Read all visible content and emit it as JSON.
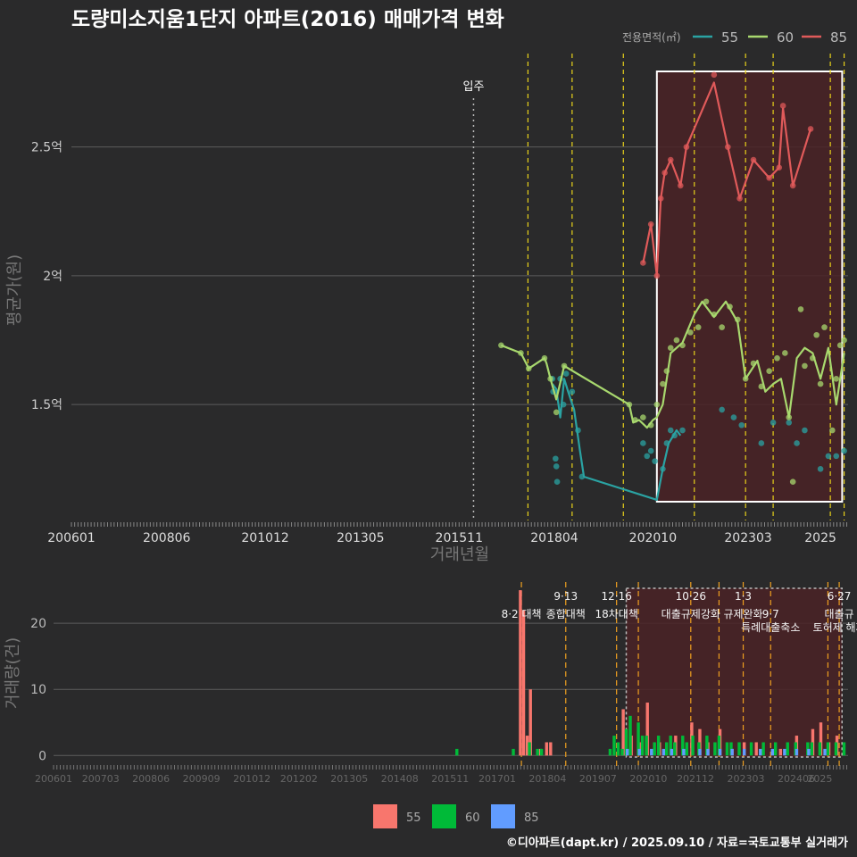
{
  "title": "도량미소지움1단지 아파트(2016) 매매가격 변화",
  "footer": "©디아파트(dapt.kr) / 2025.09.10 / 자료=국토교통부 실거래가",
  "colors": {
    "background": "#2a2a2b",
    "s55": "#2aa3a3",
    "s60": "#a8d86e",
    "s85": "#e05a5a",
    "bar55": "#f8766d",
    "bar60": "#00ba38",
    "bar85": "#619cff",
    "highlight": "#4a2226",
    "vline": "#e8d21a",
    "vline_bottom": "#f0a020"
  },
  "legend": {
    "title": "전용면적(㎡)",
    "items": [
      "55",
      "60",
      "85"
    ]
  },
  "bottom_legend": [
    "55",
    "60",
    "85"
  ],
  "price_chart": {
    "type": "line",
    "ylabel": "평균가(원)",
    "xlabel": "거래년월",
    "x_ticks": [
      "200601",
      "200806",
      "201012",
      "201305",
      "201511",
      "201804",
      "202010",
      "202303",
      "2025"
    ],
    "y_ticks": [
      {
        "value": 1.5,
        "label": "1.5억"
      },
      {
        "value": 2.0,
        "label": "2억"
      },
      {
        "value": 2.5,
        "label": "2.5억"
      }
    ],
    "ylim": [
      1.05,
      2.88
    ],
    "xlim": [
      2006.0,
      2025.7
    ],
    "move_in": {
      "x": 2016.2,
      "label": "입주"
    },
    "policy_lines": [
      2017.58,
      2018.7,
      2020.0,
      2021.8,
      2023.1,
      2023.8,
      2025.25,
      2025.6
    ],
    "highlight_range": [
      2020.85,
      2025.55
    ],
    "series": [
      {
        "name": "55",
        "line": [
          [
            2018.2,
            1.58
          ],
          [
            2018.3,
            1.56
          ],
          [
            2018.4,
            1.45
          ],
          [
            2018.5,
            1.6
          ],
          [
            2018.6,
            1.55
          ],
          [
            2018.75,
            1.48
          ],
          [
            2018.9,
            1.32
          ],
          [
            2019.0,
            1.22
          ],
          [
            2020.85,
            1.13
          ],
          [
            2021.0,
            1.25
          ],
          [
            2021.15,
            1.35
          ],
          [
            2021.35,
            1.4
          ],
          [
            2021.45,
            1.38
          ]
        ],
        "points": [
          [
            2018.2,
            1.6
          ],
          [
            2018.22,
            1.55
          ],
          [
            2018.28,
            1.29
          ],
          [
            2018.3,
            1.26
          ],
          [
            2018.32,
            1.2
          ],
          [
            2018.4,
            1.6
          ],
          [
            2018.48,
            1.5
          ],
          [
            2018.55,
            1.62
          ],
          [
            2018.7,
            1.55
          ],
          [
            2018.85,
            1.4
          ],
          [
            2018.95,
            1.22
          ],
          [
            2020.5,
            1.35
          ],
          [
            2020.6,
            1.3
          ],
          [
            2020.7,
            1.32
          ],
          [
            2020.8,
            1.28
          ],
          [
            2021.0,
            1.25
          ],
          [
            2021.1,
            1.35
          ],
          [
            2021.2,
            1.4
          ],
          [
            2021.3,
            1.38
          ],
          [
            2021.5,
            1.4
          ],
          [
            2022.5,
            1.48
          ],
          [
            2022.8,
            1.45
          ],
          [
            2023.0,
            1.42
          ],
          [
            2023.5,
            1.35
          ],
          [
            2023.8,
            1.43
          ],
          [
            2024.2,
            1.43
          ],
          [
            2024.4,
            1.35
          ],
          [
            2024.6,
            1.4
          ],
          [
            2025.0,
            1.25
          ],
          [
            2025.2,
            1.3
          ],
          [
            2025.4,
            1.3
          ],
          [
            2025.6,
            1.32
          ]
        ]
      },
      {
        "name": "60",
        "line": [
          [
            2016.9,
            1.73
          ],
          [
            2017.4,
            1.7
          ],
          [
            2017.6,
            1.64
          ],
          [
            2017.9,
            1.67
          ],
          [
            2018.0,
            1.68
          ],
          [
            2018.05,
            1.66
          ],
          [
            2018.15,
            1.6
          ],
          [
            2018.3,
            1.52
          ],
          [
            2018.5,
            1.65
          ],
          [
            2020.15,
            1.5
          ],
          [
            2020.25,
            1.43
          ],
          [
            2020.4,
            1.44
          ],
          [
            2020.6,
            1.41
          ],
          [
            2020.75,
            1.44
          ],
          [
            2020.85,
            1.45
          ],
          [
            2021.0,
            1.5
          ],
          [
            2021.1,
            1.6
          ],
          [
            2021.2,
            1.7
          ],
          [
            2021.35,
            1.72
          ],
          [
            2021.5,
            1.74
          ],
          [
            2021.8,
            1.85
          ],
          [
            2022.0,
            1.9
          ],
          [
            2022.3,
            1.84
          ],
          [
            2022.6,
            1.9
          ],
          [
            2022.9,
            1.82
          ],
          [
            2023.1,
            1.6
          ],
          [
            2023.4,
            1.67
          ],
          [
            2023.6,
            1.55
          ],
          [
            2023.8,
            1.58
          ],
          [
            2024.0,
            1.6
          ],
          [
            2024.2,
            1.45
          ],
          [
            2024.4,
            1.68
          ],
          [
            2024.6,
            1.72
          ],
          [
            2024.8,
            1.7
          ],
          [
            2025.0,
            1.6
          ],
          [
            2025.2,
            1.72
          ],
          [
            2025.4,
            1.5
          ],
          [
            2025.6,
            1.7
          ]
        ],
        "points": [
          [
            2016.9,
            1.73
          ],
          [
            2017.4,
            1.7
          ],
          [
            2017.6,
            1.64
          ],
          [
            2018.0,
            1.68
          ],
          [
            2018.15,
            1.6
          ],
          [
            2018.3,
            1.47
          ],
          [
            2018.5,
            1.65
          ],
          [
            2020.15,
            1.5
          ],
          [
            2020.3,
            1.44
          ],
          [
            2020.5,
            1.45
          ],
          [
            2020.7,
            1.42
          ],
          [
            2020.85,
            1.5
          ],
          [
            2021.0,
            1.58
          ],
          [
            2021.1,
            1.63
          ],
          [
            2021.2,
            1.72
          ],
          [
            2021.35,
            1.75
          ],
          [
            2021.5,
            1.73
          ],
          [
            2021.7,
            1.78
          ],
          [
            2021.9,
            1.8
          ],
          [
            2022.1,
            1.9
          ],
          [
            2022.3,
            1.85
          ],
          [
            2022.5,
            1.8
          ],
          [
            2022.7,
            1.88
          ],
          [
            2022.9,
            1.83
          ],
          [
            2023.1,
            1.6
          ],
          [
            2023.3,
            1.66
          ],
          [
            2023.5,
            1.57
          ],
          [
            2023.7,
            1.63
          ],
          [
            2023.9,
            1.68
          ],
          [
            2024.1,
            1.7
          ],
          [
            2024.2,
            1.45
          ],
          [
            2024.3,
            1.2
          ],
          [
            2024.5,
            1.87
          ],
          [
            2024.6,
            1.65
          ],
          [
            2024.8,
            1.68
          ],
          [
            2024.9,
            1.77
          ],
          [
            2025.0,
            1.58
          ],
          [
            2025.1,
            1.8
          ],
          [
            2025.3,
            1.4
          ],
          [
            2025.4,
            1.6
          ],
          [
            2025.5,
            1.73
          ],
          [
            2025.6,
            1.75
          ]
        ]
      },
      {
        "name": "85",
        "line": [
          [
            2020.5,
            2.05
          ],
          [
            2020.7,
            2.2
          ],
          [
            2020.85,
            2.0
          ],
          [
            2020.95,
            2.3
          ],
          [
            2021.05,
            2.4
          ],
          [
            2021.2,
            2.45
          ],
          [
            2021.45,
            2.35
          ],
          [
            2021.6,
            2.5
          ],
          [
            2022.3,
            2.75
          ],
          [
            2022.65,
            2.5
          ],
          [
            2022.95,
            2.3
          ],
          [
            2023.3,
            2.45
          ],
          [
            2023.7,
            2.38
          ],
          [
            2023.95,
            2.42
          ],
          [
            2024.05,
            2.65
          ],
          [
            2024.3,
            2.35
          ],
          [
            2024.75,
            2.57
          ]
        ],
        "points": [
          [
            2020.5,
            2.05
          ],
          [
            2020.7,
            2.2
          ],
          [
            2020.85,
            2.0
          ],
          [
            2020.95,
            2.3
          ],
          [
            2021.05,
            2.4
          ],
          [
            2021.2,
            2.45
          ],
          [
            2021.45,
            2.35
          ],
          [
            2021.6,
            2.5
          ],
          [
            2022.3,
            2.78
          ],
          [
            2022.65,
            2.5
          ],
          [
            2022.95,
            2.3
          ],
          [
            2023.3,
            2.45
          ],
          [
            2023.7,
            2.38
          ],
          [
            2023.95,
            2.42
          ],
          [
            2024.05,
            2.66
          ],
          [
            2024.3,
            2.35
          ],
          [
            2024.75,
            2.57
          ]
        ]
      }
    ]
  },
  "volume_chart": {
    "type": "bar",
    "ylabel": "거래량(건)",
    "x_ticks": [
      "200601",
      "200703",
      "200806",
      "200909",
      "201012",
      "201202",
      "201305",
      "201408",
      "201511",
      "201701",
      "201804",
      "201907",
      "202010",
      "202112",
      "202303",
      "202406",
      "2025"
    ],
    "y_ticks": [
      0,
      10,
      20
    ],
    "ylim": [
      -0.5,
      26.5
    ],
    "xlim": [
      2006.0,
      2025.7
    ],
    "highlight_range": [
      2020.2,
      2025.55
    ],
    "policy_lines": [
      2017.6,
      2018.7,
      2019.96,
      2020.5,
      2021.8,
      2022.5,
      2023.1,
      2023.78,
      2025.2,
      2025.48
    ],
    "annotations": [
      {
        "x": 2017.6,
        "text": "8·2 대책",
        "row": 1
      },
      {
        "x": 2018.7,
        "text": "9·13",
        "row": 0
      },
      {
        "x": 2018.7,
        "text": "종합대책",
        "row": 1
      },
      {
        "x": 2019.96,
        "text": "12·16",
        "row": 0
      },
      {
        "x": 2019.96,
        "text": "18차대책",
        "row": 1
      },
      {
        "x": 2021.8,
        "text": "10·26",
        "row": 0
      },
      {
        "x": 2021.8,
        "text": "대출규제강화",
        "row": 1
      },
      {
        "x": 2023.1,
        "text": "1·3",
        "row": 0
      },
      {
        "x": 2023.1,
        "text": "규제완화",
        "row": 1
      },
      {
        "x": 2023.78,
        "text": "9·7",
        "row": 1
      },
      {
        "x": 2023.78,
        "text": "특례대출축소",
        "row": 2
      },
      {
        "x": 2025.48,
        "text": "6·27",
        "row": 0
      },
      {
        "x": 2025.48,
        "text": "대출규",
        "row": 1
      },
      {
        "x": 2025.48,
        "text": "토허제 해제",
        "row": 2
      }
    ],
    "series": [
      {
        "name": "55",
        "bars": [
          [
            2017.65,
            25
          ],
          [
            2017.73,
            22
          ],
          [
            2017.82,
            3
          ],
          [
            2017.9,
            10
          ],
          [
            2018.15,
            1
          ],
          [
            2018.3,
            2
          ],
          [
            2018.4,
            2
          ],
          [
            2020.2,
            7
          ],
          [
            2020.4,
            3
          ],
          [
            2020.6,
            2
          ],
          [
            2020.8,
            8
          ],
          [
            2021.1,
            2
          ],
          [
            2021.5,
            3
          ],
          [
            2021.9,
            5
          ],
          [
            2022.1,
            4
          ],
          [
            2022.3,
            2
          ],
          [
            2022.6,
            4
          ],
          [
            2022.9,
            1
          ],
          [
            2023.2,
            2
          ],
          [
            2023.5,
            2
          ],
          [
            2024.1,
            1
          ],
          [
            2024.5,
            3
          ],
          [
            2024.9,
            4
          ],
          [
            2025.1,
            5
          ],
          [
            2025.3,
            2
          ],
          [
            2025.5,
            3
          ]
        ]
      },
      {
        "name": "60",
        "bars": [
          [
            2016.0,
            1
          ],
          [
            2017.4,
            1
          ],
          [
            2017.8,
            2
          ],
          [
            2018.0,
            1
          ],
          [
            2018.1,
            1
          ],
          [
            2019.8,
            1
          ],
          [
            2019.9,
            3
          ],
          [
            2020.0,
            2
          ],
          [
            2020.1,
            1
          ],
          [
            2020.2,
            4
          ],
          [
            2020.3,
            6
          ],
          [
            2020.5,
            5
          ],
          [
            2020.6,
            3
          ],
          [
            2020.7,
            3
          ],
          [
            2020.9,
            2
          ],
          [
            2021.0,
            3
          ],
          [
            2021.2,
            2
          ],
          [
            2021.3,
            3
          ],
          [
            2021.4,
            2
          ],
          [
            2021.6,
            3
          ],
          [
            2021.7,
            2
          ],
          [
            2021.85,
            3
          ],
          [
            2022.0,
            2
          ],
          [
            2022.2,
            3
          ],
          [
            2022.4,
            2
          ],
          [
            2022.5,
            3
          ],
          [
            2022.7,
            2
          ],
          [
            2022.8,
            2
          ],
          [
            2023.0,
            2
          ],
          [
            2023.3,
            2
          ],
          [
            2023.6,
            2
          ],
          [
            2023.9,
            2
          ],
          [
            2024.2,
            2
          ],
          [
            2024.4,
            2
          ],
          [
            2024.7,
            2
          ],
          [
            2024.8,
            2
          ],
          [
            2025.0,
            2
          ],
          [
            2025.2,
            2
          ],
          [
            2025.4,
            2
          ],
          [
            2025.6,
            2
          ]
        ]
      },
      {
        "name": "85",
        "bars": [
          [
            2020.15,
            1
          ],
          [
            2020.45,
            1
          ],
          [
            2020.75,
            1
          ],
          [
            2021.05,
            1
          ],
          [
            2021.25,
            1
          ],
          [
            2021.55,
            1
          ],
          [
            2021.95,
            1
          ],
          [
            2022.15,
            1
          ],
          [
            2022.45,
            1
          ],
          [
            2022.75,
            1
          ],
          [
            2023.05,
            1
          ],
          [
            2023.45,
            1
          ],
          [
            2023.75,
            1
          ],
          [
            2024.05,
            1
          ],
          [
            2024.35,
            1
          ],
          [
            2024.65,
            1
          ],
          [
            2025.05,
            1
          ]
        ]
      }
    ]
  }
}
